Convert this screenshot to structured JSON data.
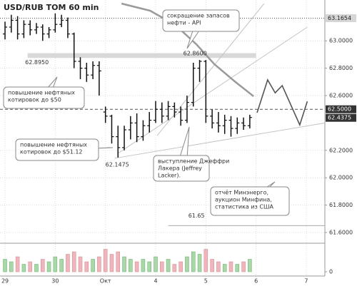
{
  "chart_data": {
    "type": "ohlc",
    "title": "USD/RUB TOM 60 min",
    "xlim": [
      -0.1,
      6.37
    ],
    "xticks": [
      {
        "value": 0,
        "label": "29"
      },
      {
        "value": 1,
        "label": "30"
      },
      {
        "value": 2,
        "label": "Окт"
      },
      {
        "value": 3,
        "label": "4"
      },
      {
        "value": 4,
        "label": "5"
      },
      {
        "value": 5,
        "label": "6"
      },
      {
        "value": 6,
        "label": "7"
      }
    ],
    "ylim": [
      61.527,
      63.272
    ],
    "yticks": [
      {
        "value": 61.6,
        "label": "61.6000"
      },
      {
        "value": 61.8,
        "label": "61.8000"
      },
      {
        "value": 62.0,
        "label": "62.0000"
      },
      {
        "value": 62.2,
        "label": "62.2000"
      },
      {
        "value": 62.6,
        "label": "62.6000"
      },
      {
        "value": 62.8,
        "label": "62.8000"
      },
      {
        "value": 63.0,
        "label": "63.0000"
      }
    ],
    "grid": true,
    "bar_color": "#111111",
    "ohlc": {
      "x": [
        0,
        0.125,
        0.25,
        0.375,
        0.5,
        0.625,
        0.75,
        0.875,
        1,
        1.125,
        1.25,
        1.375,
        1.5,
        1.625,
        1.75,
        1.875,
        2,
        2.125,
        2.25,
        2.375,
        2.5,
        2.625,
        2.75,
        2.875,
        3,
        3.125,
        3.25,
        3.375,
        3.5,
        3.625,
        3.75,
        3.875,
        4,
        4.125,
        4.25,
        4.375,
        4.5,
        4.625,
        4.75,
        4.875
      ],
      "open": [
        63.05,
        63.1,
        63.15,
        63.05,
        63.12,
        63.08,
        63.1,
        63.05,
        63.08,
        63.12,
        63.15,
        63.05,
        62.85,
        62.8,
        62.75,
        62.82,
        62.48,
        62.45,
        62.3,
        62.22,
        62.35,
        62.4,
        62.3,
        62.38,
        62.42,
        62.5,
        62.45,
        62.52,
        62.48,
        62.42,
        62.55,
        62.8,
        62.85,
        62.45,
        62.4,
        62.38,
        62.42,
        62.36,
        62.4,
        62.38
      ],
      "high": [
        63.14,
        63.19,
        63.18,
        63.15,
        63.15,
        63.13,
        63.12,
        63.1,
        63.2,
        63.19,
        63.17,
        63.06,
        62.88,
        62.84,
        62.85,
        62.85,
        62.52,
        62.46,
        62.38,
        62.38,
        62.45,
        62.47,
        62.42,
        62.48,
        62.56,
        62.55,
        62.56,
        62.55,
        62.52,
        62.6,
        62.84,
        62.86,
        62.86,
        62.5,
        62.48,
        62.46,
        62.45,
        62.44,
        62.44,
        62.46
      ],
      "low": [
        63.01,
        63.06,
        63.01,
        63.02,
        63.04,
        63.05,
        63.0,
        63.02,
        63.06,
        63.1,
        63.02,
        62.8,
        62.72,
        62.7,
        62.72,
        62.6,
        62.4,
        62.25,
        62.1475,
        62.2,
        62.28,
        62.26,
        62.27,
        62.33,
        62.4,
        62.4,
        62.42,
        62.44,
        62.38,
        62.4,
        62.52,
        62.7,
        62.4,
        62.36,
        62.33,
        62.32,
        62.3,
        62.32,
        62.35,
        62.36
      ],
      "close": [
        63.1,
        63.15,
        63.05,
        63.12,
        63.08,
        63.1,
        63.05,
        63.08,
        63.12,
        63.15,
        63.05,
        62.85,
        62.8,
        62.75,
        62.82,
        62.78,
        62.45,
        62.3,
        62.22,
        62.35,
        62.4,
        62.3,
        62.38,
        62.42,
        62.5,
        62.45,
        62.52,
        62.48,
        62.42,
        62.55,
        62.8,
        62.85,
        62.45,
        62.4,
        62.38,
        62.42,
        62.36,
        62.4,
        62.38,
        62.44
      ]
    },
    "volume": [
      5,
      4,
      6,
      3,
      4,
      3,
      5,
      4,
      6,
      5,
      7,
      8,
      6,
      4,
      5,
      6,
      9,
      7,
      8,
      6,
      5,
      4,
      5,
      4,
      6,
      4,
      5,
      3,
      4,
      6,
      8,
      7,
      9,
      5,
      4,
      3,
      4,
      3,
      4,
      5
    ],
    "volume_ylim": [
      0,
      10
    ],
    "volume_yticks": [
      0
    ],
    "volume_up_color": "#a8d8a8",
    "volume_down_color": "#f0b4bc",
    "ma": {
      "color": "#9a9a9a",
      "x": [
        2.32,
        2.89,
        3.39,
        3.81,
        4.17,
        4.59,
        4.95
      ],
      "values": [
        63.272,
        63.22,
        63.116,
        62.975,
        62.829,
        62.699,
        62.595
      ]
    },
    "forecast": {
      "color": "#555555",
      "x": [
        5.02,
        5.23,
        5.38,
        5.52,
        5.87,
        6.02
      ],
      "values": [
        62.475,
        62.715,
        62.62,
        62.673,
        62.386,
        62.558
      ]
    },
    "trendlines": [
      {
        "x": [
          2.18,
          6.37
        ],
        "values": [
          62.142,
          62.4
        ]
      },
      {
        "x": [
          2.25,
          6.02
        ],
        "values": [
          62.178,
          63.1
        ]
      },
      {
        "x": [
          3.03,
          5.16
        ],
        "values": [
          62.308,
          63.272
        ]
      }
    ],
    "band": {
      "x": [
        0.45,
        5.0
      ],
      "values": [
        62.875,
        62.91
      ],
      "color": "#d9d9d9"
    },
    "levels": [
      {
        "value": 63.1654,
        "label": "63.1654",
        "color": "#d6d6d6",
        "text_color": "#222222",
        "dash": "1,2"
      },
      {
        "value": 62.5,
        "label": "62.5000",
        "color": "#333333",
        "text_color": "#ffffff",
        "dash": "4,3"
      },
      {
        "value": 62.4375,
        "label": "62.4375",
        "color": "#333333",
        "text_color": "#ffffff",
        "dash": ""
      }
    ],
    "price_labels": [
      {
        "value": 62.895,
        "label": "62.8950",
        "x": 0.4
      },
      {
        "value": 62.86,
        "label": "62.8600",
        "x": 3.55
      },
      {
        "value": 62.1475,
        "label": "62.1475",
        "x": 2.0
      },
      {
        "value": 61.65,
        "label": "61.65",
        "x": 3.65,
        "line": [
          3.25,
          6.37
        ]
      }
    ],
    "annotations": [
      {
        "lines": [
          "сокращение запасов",
          "нефти - API"
        ]
      },
      {
        "lines": [
          "повышение нефтяных",
          "котировок до $50"
        ]
      },
      {
        "lines": [
          "повышение нефтяных",
          "котировок до $51.12"
        ]
      },
      {
        "lines": [
          "выступление Джеффри",
          "Лакера (Jeffrey",
          "Lacker)."
        ]
      },
      {
        "lines": [
          "отчёт Минэнерго,",
          "аукцион Минфина,",
          "статистика из США"
        ]
      }
    ]
  }
}
